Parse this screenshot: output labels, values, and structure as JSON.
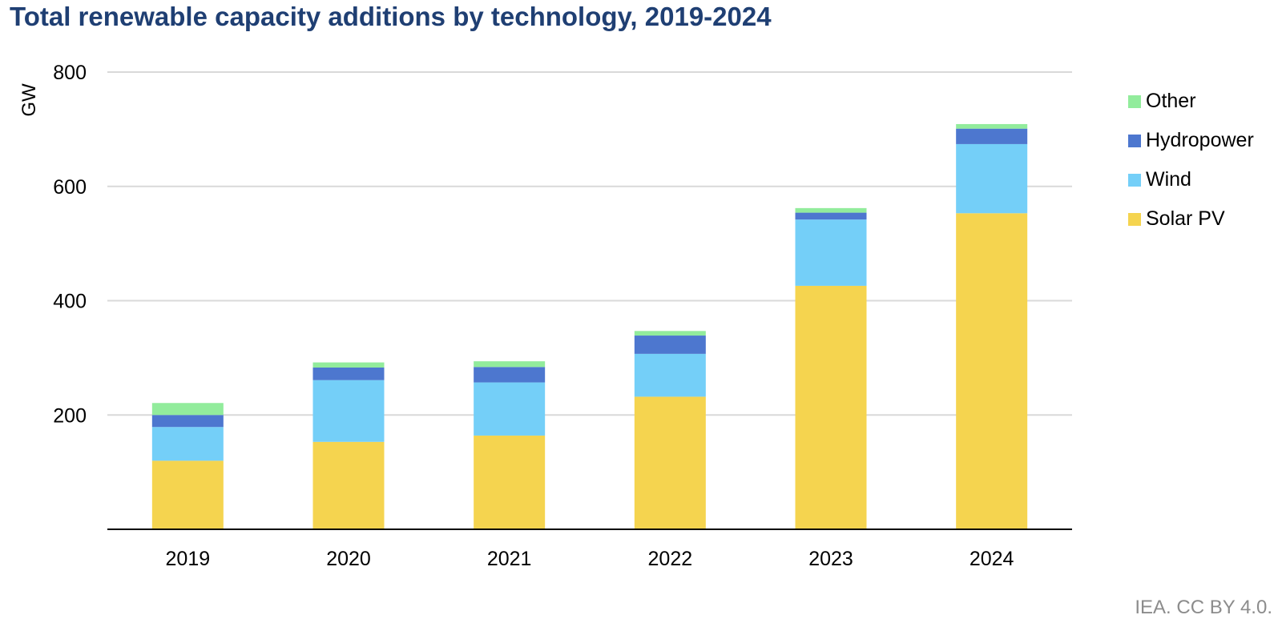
{
  "chart_data": {
    "type": "bar",
    "stacked": true,
    "title": "Total renewable capacity additions by technology, 2019-2024",
    "ylabel": "GW",
    "xlabel": "",
    "ylim": [
      0,
      800
    ],
    "yticks": [
      "200",
      "400",
      "600",
      "800"
    ],
    "grid": true,
    "legend_position": "right",
    "categories": [
      "2019",
      "2020",
      "2021",
      "2022",
      "2023",
      "2024"
    ],
    "series": [
      {
        "name": "Solar PV",
        "color": "#f5d44f",
        "values": [
          120,
          153,
          164,
          232,
          426,
          553
        ]
      },
      {
        "name": "Wind",
        "color": "#74cff8",
        "values": [
          59,
          108,
          93,
          75,
          116,
          121
        ]
      },
      {
        "name": "Hydropower",
        "color": "#4d77cf",
        "values": [
          21,
          22,
          27,
          32,
          12,
          27
        ]
      },
      {
        "name": "Other",
        "color": "#92ec9c",
        "values": [
          21,
          9,
          10,
          8,
          8,
          8
        ]
      }
    ],
    "legend_order": [
      "Other",
      "Hydropower",
      "Wind",
      "Solar PV"
    ]
  },
  "credit": "IEA. CC BY 4.0."
}
